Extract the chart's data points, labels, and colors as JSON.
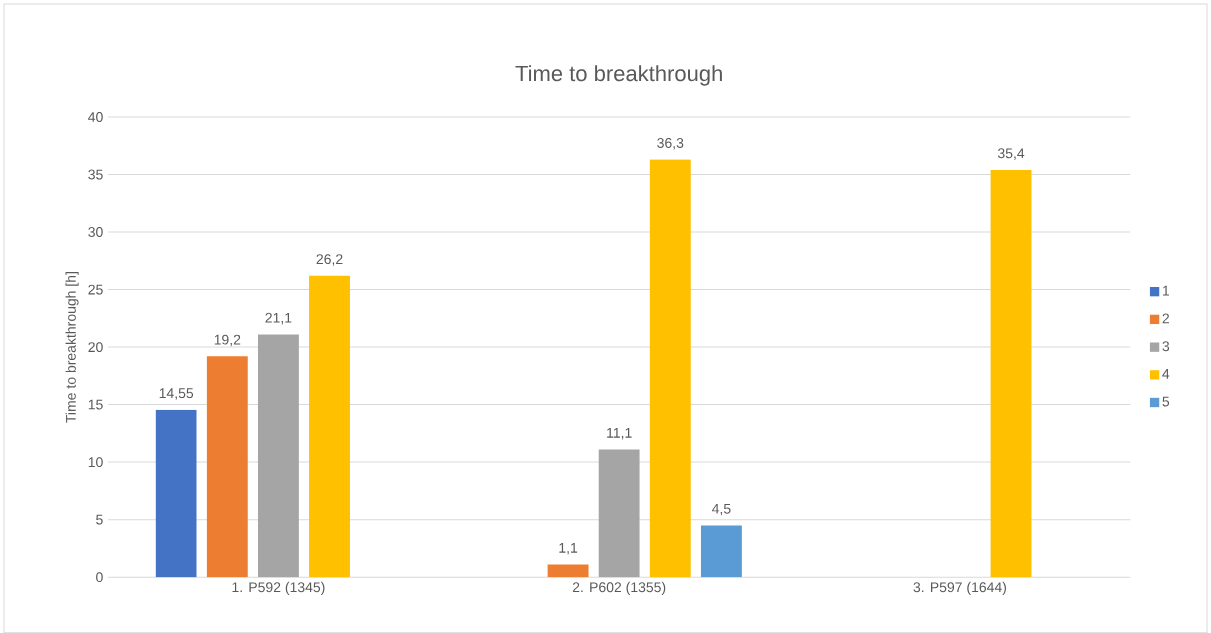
{
  "chart_data": {
    "type": "bar",
    "title": "Time to breakthrough",
    "ylabel": "Time to breakthrough [h]",
    "categories": [
      "1. P592 (1345)",
      "2. P602 (1355)",
      "3. P597 (1644)"
    ],
    "series": [
      {
        "name": "1",
        "color": "#4472c4",
        "values": [
          14.55,
          null,
          null
        ],
        "value_labels": [
          "14,55",
          null,
          null
        ]
      },
      {
        "name": "2",
        "color": "#ed7d31",
        "values": [
          19.2,
          1.1,
          null
        ],
        "value_labels": [
          "19,2",
          "1,1",
          null
        ]
      },
      {
        "name": "3",
        "color": "#a5a5a5",
        "values": [
          21.1,
          11.1,
          null
        ],
        "value_labels": [
          "21,1",
          "11,1",
          null
        ]
      },
      {
        "name": "4",
        "color": "#ffc000",
        "values": [
          26.2,
          36.3,
          35.4
        ],
        "value_labels": [
          "26,2",
          "36,3",
          "35,4"
        ]
      },
      {
        "name": "5",
        "color": "#5b9bd5",
        "values": [
          null,
          4.5,
          null
        ],
        "value_labels": [
          null,
          "4,5",
          null
        ]
      }
    ],
    "ylim": [
      0,
      40
    ],
    "yticks": [
      0,
      5,
      10,
      15,
      20,
      25,
      30,
      35,
      40
    ],
    "grid": "y",
    "legend": "right"
  }
}
